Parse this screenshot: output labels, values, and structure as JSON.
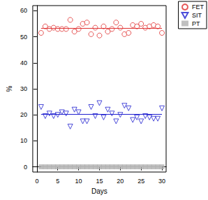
{
  "chart_data": {
    "type": "scatter",
    "x_label": "Days",
    "y_label": "%",
    "x": [
      1,
      2,
      3,
      4,
      5,
      6,
      7,
      8,
      9,
      10,
      11,
      12,
      13,
      14,
      15,
      16,
      17,
      18,
      19,
      20,
      21,
      22,
      23,
      24,
      25,
      26,
      27,
      28,
      29,
      30
    ],
    "series": [
      {
        "name": "FET",
        "color": "#e03030",
        "marker": "circle-open",
        "mean": 53.2,
        "values": [
          51.5,
          54,
          53,
          53.5,
          53,
          53,
          53,
          56.5,
          52,
          53,
          55,
          55.5,
          51,
          53.5,
          50.5,
          54,
          52,
          53,
          55.5,
          53.5,
          51,
          51.5,
          54.5,
          54,
          55,
          53.5,
          54,
          54.5,
          54,
          51.5
        ]
      },
      {
        "name": "SIT",
        "color": "#2020d0",
        "marker": "triangle-down-open",
        "mean": 20.2,
        "values": [
          23,
          19.5,
          20.5,
          19.5,
          20,
          21,
          20.5,
          15.5,
          22,
          21,
          17.5,
          17.5,
          23,
          19.5,
          24.5,
          19,
          22,
          20.5,
          17.5,
          20,
          23.5,
          22.5,
          18,
          19,
          17.5,
          19.5,
          19,
          18.5,
          18.5,
          22.5
        ]
      },
      {
        "name": "PT",
        "color": "#b0b0b0",
        "marker": "square",
        "mean": 0,
        "values": [
          0,
          0,
          0,
          0,
          0,
          0,
          0,
          0,
          0,
          0,
          0,
          0,
          0,
          0,
          0,
          0,
          0,
          0,
          0,
          0,
          0,
          0,
          0,
          0,
          0,
          0,
          0,
          0,
          0,
          0
        ]
      }
    ],
    "xlim": [
      -1,
      31
    ],
    "xticks": [
      0,
      5,
      10,
      15,
      20,
      25,
      30
    ],
    "ylim": [
      -2,
      62
    ],
    "yticks": [
      0,
      10,
      20,
      30,
      40,
      50,
      60
    ],
    "grid": false,
    "legend": "top-right"
  }
}
